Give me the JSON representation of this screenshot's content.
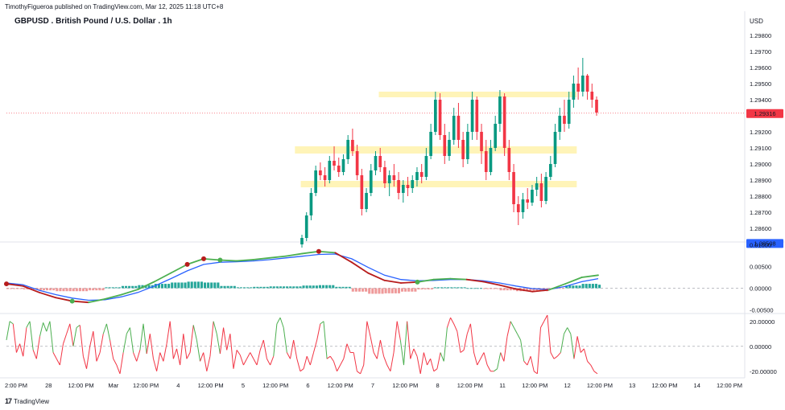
{
  "header": {
    "publisher": "TimothyFigueroa published on TradingView.com, Mar 12, 2025 11:18 UTC+8",
    "title": "GBPUSD . British Pound / U.S. Dollar . 1h",
    "currency": "USD"
  },
  "footer": {
    "logo_mark": "17",
    "brand": "TradingView"
  },
  "colors": {
    "bull": "#089981",
    "bear": "#f23645",
    "zone": "#fff3b0",
    "price_label": "#f23645",
    "low_label": "#2962ff",
    "macd_fast": "#4caf50",
    "macd_slow": "#2962ff",
    "macd_bear": "#b71c1c",
    "osc_bull": "#4caf50",
    "osc_bear": "#f23645"
  },
  "chart_data": [
    {
      "type": "candlestick",
      "title": "GBPUSD . British Pound / U.S. Dollar . 1h",
      "y_ticks": [
        "1.29800",
        "1.29700",
        "1.29600",
        "1.29500",
        "1.29400",
        "1.29200",
        "1.29100",
        "1.29000",
        "1.28900",
        "1.28800",
        "1.28700",
        "1.28600"
      ],
      "ylim": [
        1.2852,
        1.2995
      ],
      "current_price": 1.29316,
      "current_price_label": "1.29316",
      "low_price": 1.28508,
      "low_price_label": "1.28508",
      "zones": [
        {
          "x0": 0.506,
          "x1": 0.775,
          "y0": 1.29415,
          "y1": 1.2945
        },
        {
          "x0": 0.392,
          "x1": 0.775,
          "y0": 1.29065,
          "y1": 1.2911
        },
        {
          "x0": 0.4,
          "x1": 0.775,
          "y0": 1.28855,
          "y1": 1.28895
        }
      ],
      "candles": [
        [
          1.285,
          1.2856,
          1.2848,
          1.2854
        ],
        [
          1.2854,
          1.287,
          1.2852,
          1.2868
        ],
        [
          1.2868,
          1.2885,
          1.2865,
          1.2882
        ],
        [
          1.2882,
          1.2899,
          1.288,
          1.2896
        ],
        [
          1.2896,
          1.2901,
          1.289,
          1.2893
        ],
        [
          1.2893,
          1.2898,
          1.2886,
          1.289
        ],
        [
          1.289,
          1.2905,
          1.2888,
          1.2902
        ],
        [
          1.2902,
          1.2911,
          1.2896,
          1.2899
        ],
        [
          1.2899,
          1.2904,
          1.2892,
          1.2895
        ],
        [
          1.2895,
          1.2906,
          1.2893,
          1.2903
        ],
        [
          1.2903,
          1.2918,
          1.29,
          1.2915
        ],
        [
          1.2915,
          1.2922,
          1.2905,
          1.2908
        ],
        [
          1.2908,
          1.2912,
          1.289,
          1.2893
        ],
        [
          1.2893,
          1.2897,
          1.2868,
          1.2872
        ],
        [
          1.2872,
          1.2885,
          1.287,
          1.2882
        ],
        [
          1.2882,
          1.29,
          1.288,
          1.2896
        ],
        [
          1.2896,
          1.2908,
          1.2893,
          1.2905
        ],
        [
          1.2905,
          1.291,
          1.2895,
          1.2898
        ],
        [
          1.2898,
          1.2902,
          1.2885,
          1.2888
        ],
        [
          1.2888,
          1.2896,
          1.288,
          1.2893
        ],
        [
          1.2893,
          1.29,
          1.2886,
          1.289
        ],
        [
          1.289,
          1.2895,
          1.2878,
          1.2882
        ],
        [
          1.2882,
          1.289,
          1.2876,
          1.2887
        ],
        [
          1.2887,
          1.2892,
          1.288,
          1.2885
        ],
        [
          1.2885,
          1.2893,
          1.2882,
          1.289
        ],
        [
          1.289,
          1.2898,
          1.2886,
          1.2895
        ],
        [
          1.2895,
          1.29,
          1.2888,
          1.2892
        ],
        [
          1.2892,
          1.291,
          1.289,
          1.2905
        ],
        [
          1.2905,
          1.2925,
          1.2903,
          1.292
        ],
        [
          1.292,
          1.2945,
          1.2918,
          1.294
        ],
        [
          1.294,
          1.2944,
          1.2915,
          1.2918
        ],
        [
          1.2918,
          1.2925,
          1.29,
          1.2905
        ],
        [
          1.2905,
          1.292,
          1.2902,
          1.2915
        ],
        [
          1.2915,
          1.2935,
          1.2912,
          1.293
        ],
        [
          1.293,
          1.2938,
          1.291,
          1.2915
        ],
        [
          1.2915,
          1.292,
          1.2898,
          1.2903
        ],
        [
          1.2903,
          1.2925,
          1.29,
          1.292
        ],
        [
          1.292,
          1.2945,
          1.2915,
          1.294
        ],
        [
          1.294,
          1.2942,
          1.2915,
          1.292
        ],
        [
          1.292,
          1.2925,
          1.29,
          1.2908
        ],
        [
          1.2908,
          1.2915,
          1.289,
          1.2895
        ],
        [
          1.2895,
          1.2915,
          1.2893,
          1.291
        ],
        [
          1.291,
          1.293,
          1.2908,
          1.2925
        ],
        [
          1.2925,
          1.2946,
          1.292,
          1.2942
        ],
        [
          1.2942,
          1.2944,
          1.2905,
          1.291
        ],
        [
          1.291,
          1.2915,
          1.289,
          1.2895
        ],
        [
          1.2895,
          1.29,
          1.287,
          1.2875
        ],
        [
          1.2875,
          1.288,
          1.2862,
          1.287
        ],
        [
          1.287,
          1.2882,
          1.2866,
          1.2878
        ],
        [
          1.2878,
          1.2885,
          1.2872,
          1.2876
        ],
        [
          1.2876,
          1.2887,
          1.2874,
          1.2884
        ],
        [
          1.2884,
          1.2892,
          1.288,
          1.2888
        ],
        [
          1.2888,
          1.2894,
          1.2873,
          1.2877
        ],
        [
          1.2877,
          1.2895,
          1.2875,
          1.2892
        ],
        [
          1.2892,
          1.2905,
          1.289,
          1.29
        ],
        [
          1.29,
          1.2925,
          1.2898,
          1.292
        ],
        [
          1.292,
          1.2935,
          1.2915,
          1.293
        ],
        [
          1.293,
          1.294,
          1.292,
          1.2925
        ],
        [
          1.2925,
          1.2945,
          1.2922,
          1.294
        ],
        [
          1.294,
          1.2955,
          1.2935,
          1.295
        ],
        [
          1.295,
          1.296,
          1.294,
          1.2945
        ],
        [
          1.2945,
          1.2966,
          1.2942,
          1.2955
        ],
        [
          1.2955,
          1.2956,
          1.294,
          1.2945
        ],
        [
          1.2945,
          1.295,
          1.2935,
          1.294
        ],
        [
          1.294,
          1.2942,
          1.293,
          1.2932
        ]
      ]
    },
    {
      "type": "line",
      "name": "macd",
      "y_ticks": [
        "0.01000",
        "0.00500",
        "0.00000",
        "-0.00500"
      ],
      "ylim": [
        -0.0055,
        0.0105
      ],
      "fast": [
        0.001,
        0.0005,
        -0.001,
        -0.0022,
        -0.003,
        -0.0033,
        -0.0025,
        -0.0015,
        -0.0003,
        0.0015,
        0.0035,
        0.0055,
        0.0068,
        0.0065,
        0.0063,
        0.0066,
        0.007,
        0.0074,
        0.008,
        0.0085,
        0.0082,
        0.006,
        0.0035,
        0.0018,
        0.0012,
        0.0014,
        0.002,
        0.0022,
        0.002,
        0.0015,
        0.0007,
        -0.0002,
        -0.0008,
        -0.0004,
        0.001,
        0.0025,
        0.003
      ],
      "slow": [
        0.0012,
        0.0008,
        -0.0005,
        -0.0015,
        -0.0023,
        -0.0028,
        -0.0027,
        -0.002,
        -0.001,
        0.0005,
        0.0022,
        0.004,
        0.0055,
        0.006,
        0.0061,
        0.0063,
        0.0066,
        0.007,
        0.0074,
        0.0078,
        0.0079,
        0.0068,
        0.0048,
        0.003,
        0.002,
        0.0017,
        0.0018,
        0.002,
        0.002,
        0.0017,
        0.0012,
        0.0005,
        -0.0001,
        -0.0003,
        0.0004,
        0.0015,
        0.0022
      ],
      "histogram": [
        -0.0002,
        -0.0003,
        -0.0005,
        -0.0007,
        -0.0007,
        -0.0005,
        0.0002,
        0.0005,
        0.0007,
        0.001,
        0.0013,
        0.0015,
        0.0013,
        0.0005,
        0.0002,
        0.0003,
        0.0004,
        0.0004,
        0.0006,
        0.0007,
        0.0003,
        -0.0008,
        -0.0013,
        -0.0012,
        -0.0008,
        -0.0003,
        0.0002,
        0.0002,
        0.0,
        -0.0002,
        -0.0005,
        -0.0007,
        -0.0007,
        -0.0001,
        0.0006,
        0.001,
        0.0008
      ],
      "bull_cross_at": [
        4,
        13,
        25
      ],
      "bear_cross_at": [
        0,
        11,
        12,
        19
      ]
    },
    {
      "type": "line",
      "name": "oscillator",
      "y_ticks": [
        "20.00000",
        "0.00000",
        "-20.00000"
      ],
      "ylim": [
        -24,
        25
      ],
      "values": [
        5,
        20,
        18,
        -5,
        2,
        -8,
        15,
        20,
        -3,
        -10,
        8,
        19,
        12,
        20,
        -5,
        -10,
        -15,
        2,
        10,
        18,
        0,
        15,
        17,
        -8,
        -18,
        0,
        12,
        -12,
        -5,
        10,
        18,
        5,
        -10,
        -15,
        -22,
        -5,
        10,
        15,
        -5,
        -12,
        -3,
        18,
        -6,
        10,
        -10,
        -20,
        -5,
        -12,
        2,
        20,
        -10,
        -2,
        -15,
        10,
        -10,
        -5,
        17,
        5,
        -12,
        -5,
        -20,
        -8,
        20,
        10,
        -6,
        15,
        -3,
        10,
        -18,
        -3,
        -7,
        -15,
        -10,
        -5,
        -10,
        -15,
        -3,
        5,
        -10,
        -15,
        -8,
        18,
        23,
        15,
        -5,
        -10,
        5,
        -10,
        -20,
        -18,
        -8,
        -15,
        -5,
        5,
        18,
        20,
        -10,
        -8,
        -12,
        -20,
        -15,
        -10,
        2,
        -5,
        -5,
        -20,
        -22,
        -15,
        20,
        8,
        -5,
        -10,
        5,
        -8,
        -15,
        -20,
        -5,
        20,
        5,
        -15,
        20,
        -10,
        -2,
        -8,
        -22,
        -5,
        -15,
        -10,
        -20,
        -18,
        -5,
        -12,
        15,
        23,
        18,
        12,
        -5,
        -3,
        10,
        18,
        -5,
        -15,
        -10,
        -5,
        -15,
        -20,
        -20,
        -18,
        -5,
        -12,
        8,
        20,
        15,
        10,
        5,
        -12,
        -15,
        -8,
        -20,
        -22,
        15,
        20,
        25,
        -5,
        -10,
        -8,
        -5,
        10,
        15,
        10,
        -10,
        8,
        -5,
        -2,
        -12,
        -15,
        -20,
        -22
      ],
      "bear_segments": [
        [
          2,
          6
        ],
        [
          8,
          10
        ],
        [
          14,
          20
        ],
        [
          22,
          29
        ],
        [
          31,
          35
        ],
        [
          38,
          40
        ],
        [
          42,
          56
        ],
        [
          58,
          62
        ],
        [
          64,
          80
        ],
        [
          84,
          94
        ],
        [
          96,
          118
        ],
        [
          120,
          130
        ],
        [
          132,
          146
        ],
        [
          148,
          151
        ],
        [
          155,
          166
        ],
        [
          170,
          180
        ]
      ]
    }
  ],
  "x_axis": {
    "ticks": [
      "2:00 PM",
      "28",
      "12:00 PM",
      "Mar",
      "12:00 PM",
      "4",
      "12:00 PM",
      "5",
      "12:00 PM",
      "6",
      "12:00 PM",
      "7",
      "12:00 PM",
      "8",
      "12:00 PM",
      "11",
      "12:00 PM",
      "12",
      "12:00 PM",
      "13",
      "12:00 PM",
      "14",
      "12:00 PM"
    ]
  }
}
